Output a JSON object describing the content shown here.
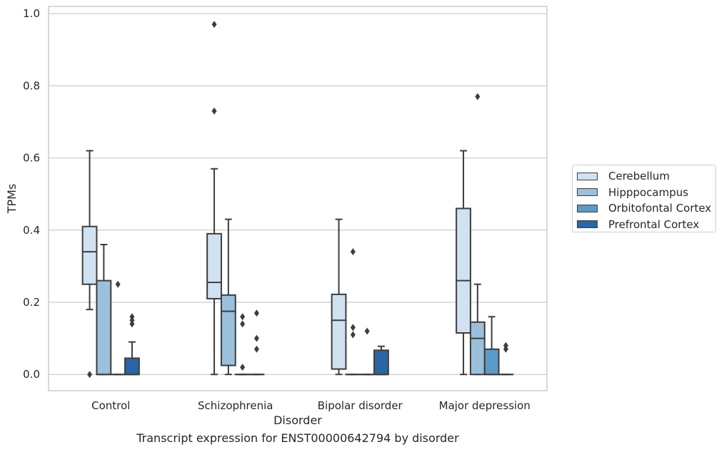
{
  "chart_data": {
    "type": "box",
    "xlabel": "Disorder",
    "ylabel": "TPMs",
    "caption": "Transcript expression for ENST00000642794 by disorder",
    "ylim": [
      -0.045,
      1.02
    ],
    "yticks": [
      0.0,
      0.2,
      0.4,
      0.6,
      0.8,
      1.0
    ],
    "ytick_labels": [
      "0.0",
      "0.2",
      "0.4",
      "0.6",
      "0.8",
      "1.0"
    ],
    "grid": true,
    "legend_position": "right",
    "categories": [
      "Control",
      "Schizophrenia",
      "Bipolar disorder",
      "Major depression"
    ],
    "series": [
      {
        "name": "Cerebellum",
        "color": "#d0e1f2",
        "boxes": [
          {
            "whislo": 0.18,
            "q1": 0.25,
            "med": 0.34,
            "q3": 0.41,
            "whishi": 0.62,
            "fliers": [
              0.0
            ]
          },
          {
            "whislo": 0.0,
            "q1": 0.21,
            "med": 0.255,
            "q3": 0.39,
            "whishi": 0.57,
            "fliers": [
              0.73,
              0.97
            ]
          },
          {
            "whislo": 0.0,
            "q1": 0.015,
            "med": 0.15,
            "q3": 0.222,
            "whishi": 0.43,
            "fliers": []
          },
          {
            "whislo": 0.0,
            "q1": 0.115,
            "med": 0.26,
            "q3": 0.46,
            "whishi": 0.62,
            "fliers": []
          }
        ]
      },
      {
        "name": "Hipppocampus",
        "color": "#9ac0db",
        "boxes": [
          {
            "whislo": 0.0,
            "q1": 0.0,
            "med": 0.0,
            "q3": 0.26,
            "whishi": 0.36,
            "fliers": []
          },
          {
            "whislo": 0.0,
            "q1": 0.025,
            "med": 0.175,
            "q3": 0.22,
            "whishi": 0.43,
            "fliers": []
          },
          {
            "whislo": 0.0,
            "q1": 0.0,
            "med": 0.0,
            "q3": 0.0,
            "whishi": 0.0,
            "fliers": [
              0.34,
              0.13,
              0.11
            ]
          },
          {
            "whislo": 0.0,
            "q1": 0.0,
            "med": 0.1,
            "q3": 0.145,
            "whishi": 0.25,
            "fliers": [
              0.77
            ]
          }
        ]
      },
      {
        "name": "Orbitofontal Cortex",
        "color": "#5a9bc9",
        "boxes": [
          {
            "whislo": 0.0,
            "q1": 0.0,
            "med": 0.0,
            "q3": 0.0,
            "whishi": 0.0,
            "fliers": [
              0.25
            ]
          },
          {
            "whislo": 0.0,
            "q1": 0.0,
            "med": 0.0,
            "q3": 0.0,
            "whishi": 0.0,
            "fliers": [
              0.16,
              0.14,
              0.02
            ]
          },
          {
            "whislo": 0.0,
            "q1": 0.0,
            "med": 0.0,
            "q3": 0.0,
            "whishi": 0.0,
            "fliers": [
              0.12
            ]
          },
          {
            "whislo": 0.0,
            "q1": 0.0,
            "med": 0.0,
            "q3": 0.07,
            "whishi": 0.16,
            "fliers": []
          }
        ]
      },
      {
        "name": "Prefrontal Cortex",
        "color": "#2866a6",
        "boxes": [
          {
            "whislo": 0.0,
            "q1": 0.0,
            "med": 0.0,
            "q3": 0.045,
            "whishi": 0.09,
            "fliers": [
              0.14,
              0.15,
              0.16
            ]
          },
          {
            "whislo": 0.0,
            "q1": 0.0,
            "med": 0.0,
            "q3": 0.0,
            "whishi": 0.0,
            "fliers": [
              0.17,
              0.1,
              0.07
            ]
          },
          {
            "whislo": 0.0,
            "q1": 0.0,
            "med": 0.0,
            "q3": 0.067,
            "whishi": 0.078,
            "fliers": []
          },
          {
            "whislo": 0.0,
            "q1": 0.0,
            "med": 0.0,
            "q3": 0.0,
            "whishi": 0.0,
            "fliers": [
              0.08,
              0.07
            ]
          }
        ]
      }
    ]
  }
}
